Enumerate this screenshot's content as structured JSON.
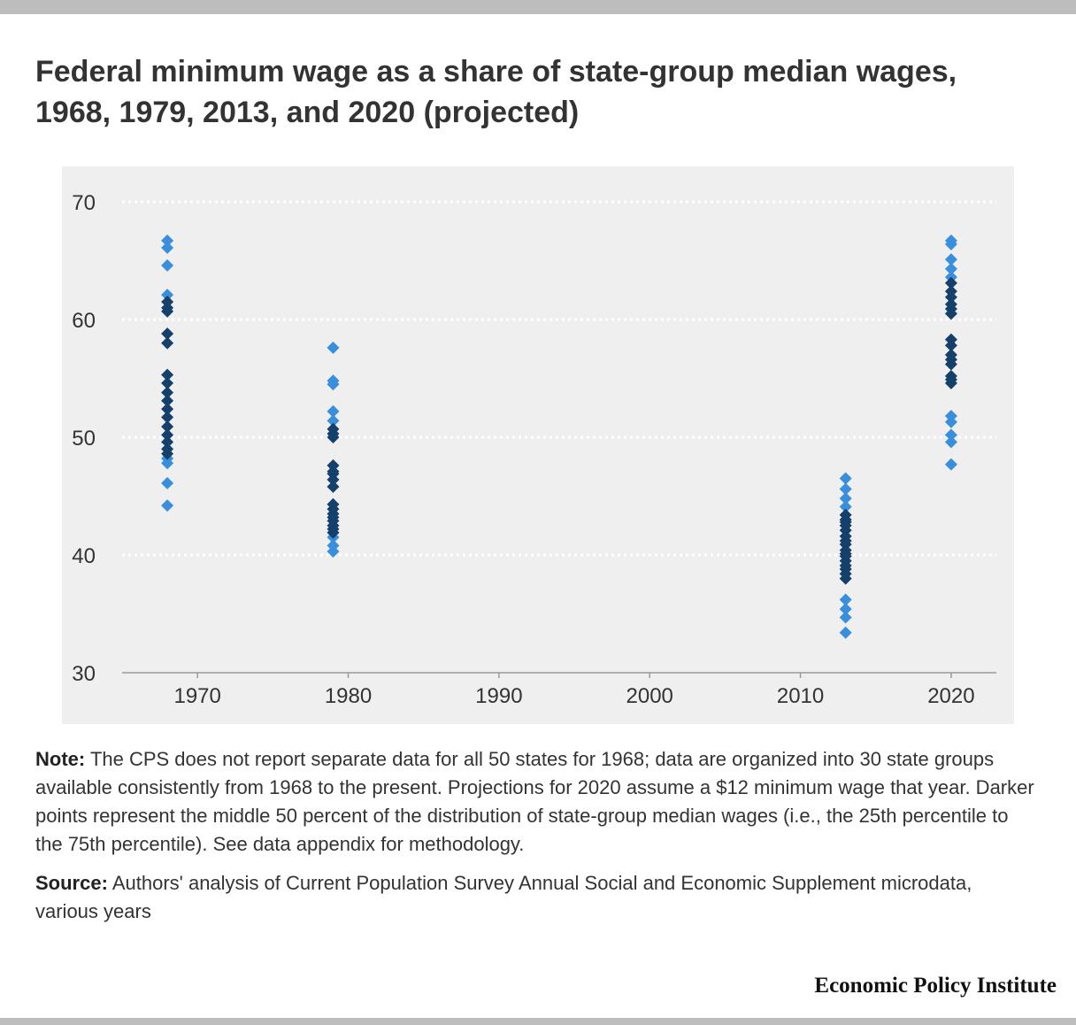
{
  "title": "Federal minimum wage as a share of state-group median wages, 1968, 1979, 2013, and 2020 (projected)",
  "chart_data": {
    "type": "scatter",
    "title": "Federal minimum wage as a share of state-group median wages, 1968, 1979, 2013, and 2020 (projected)",
    "xlabel": "",
    "ylabel": "",
    "xlim": [
      1965,
      2023
    ],
    "ylim": [
      30,
      70
    ],
    "xticks": [
      1970,
      1980,
      1990,
      2000,
      2010,
      2020
    ],
    "yticks": [
      30,
      40,
      50,
      60,
      70
    ],
    "grid": true,
    "colors": {
      "outer": "#3a8fdc",
      "middle": "#15406b"
    },
    "series": [
      {
        "x": 1968,
        "outer": [
          66.7,
          66.1,
          64.6,
          62.1,
          48.2,
          47.8,
          46.1,
          44.2
        ],
        "middle": [
          61.5,
          61.0,
          60.7,
          58.8,
          58.0,
          55.3,
          54.6,
          53.8,
          53.1,
          52.4,
          51.7,
          50.9,
          50.2,
          49.6,
          49.0,
          48.6
        ]
      },
      {
        "x": 1979,
        "outer": [
          57.6,
          54.8,
          54.5,
          52.2,
          51.4,
          41.5,
          40.8,
          40.3
        ],
        "middle": [
          50.7,
          50.0,
          47.6,
          47.1,
          46.4,
          45.8,
          44.3,
          43.9,
          43.5,
          42.9,
          42.5,
          42.2,
          41.9,
          50.3,
          46.9,
          43.2
        ]
      },
      {
        "x": 2013,
        "outer": [
          46.5,
          45.6,
          44.8,
          44.1,
          36.2,
          35.4,
          34.7,
          33.4
        ],
        "middle": [
          43.4,
          43.0,
          42.5,
          42.1,
          41.6,
          40.9,
          40.4,
          39.9,
          39.5,
          39.1,
          38.4,
          38.0,
          41.2,
          40.1,
          38.8,
          42.8
        ]
      },
      {
        "x": 2020,
        "outer": [
          66.7,
          66.4,
          65.1,
          64.3,
          63.6,
          51.8,
          51.3,
          50.2,
          49.6,
          47.7
        ],
        "middle": [
          63.1,
          62.4,
          61.9,
          61.3,
          60.9,
          60.5,
          58.3,
          57.8,
          57.0,
          56.6,
          56.2,
          55.2,
          54.9,
          54.6
        ]
      }
    ]
  },
  "note": {
    "label": "Note:",
    "text": "The CPS does not report separate data for all 50 states for 1968; data are organized into 30 state groups available consistently from 1968 to the present. Projections for 2020 assume a $12 minimum wage that year. Darker points represent the middle 50 percent of the distribution of state-group median wages (i.e., the 25th percentile to the 75th percentile). See data appendix for methodology."
  },
  "source": {
    "label": "Source:",
    "text": "Authors' analysis of Current Population Survey Annual Social and Economic Supplement microdata, various years"
  },
  "brand": "Economic Policy Institute"
}
